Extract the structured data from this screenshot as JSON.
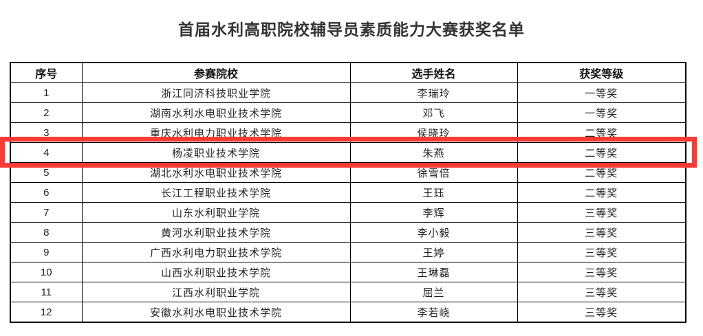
{
  "title": "首届水利高职院校辅导员素质能力大赛获奖名单",
  "table": {
    "columns": [
      "序号",
      "参赛院校",
      "选手姓名",
      "获奖等级"
    ],
    "rows": [
      {
        "no": "1",
        "school": "浙江同济科技职业学院",
        "name": "李瑞玲",
        "award": "一等奖"
      },
      {
        "no": "2",
        "school": "湖南水利水电职业技术学院",
        "name": "邓飞",
        "award": "一等奖"
      },
      {
        "no": "3",
        "school": "重庆水利电力职业技术学院",
        "name": "侯晓玲",
        "award": "二等奖"
      },
      {
        "no": "4",
        "school": "杨凌职业技术学院",
        "name": "朱燕",
        "award": "二等奖"
      },
      {
        "no": "5",
        "school": "湖北水利水电职业技术学院",
        "name": "徐雪倍",
        "award": "二等奖"
      },
      {
        "no": "6",
        "school": "长江工程职业技术学院",
        "name": "王珏",
        "award": "二等奖"
      },
      {
        "no": "7",
        "school": "山东水利职业学院",
        "name": "李辉",
        "award": "三等奖"
      },
      {
        "no": "8",
        "school": "黄河水利职业技术学院",
        "name": "李小毅",
        "award": "三等奖"
      },
      {
        "no": "9",
        "school": "广西水利电力职业技术学院",
        "name": "王婷",
        "award": "三等奖"
      },
      {
        "no": "10",
        "school": "山西水利职业技术学院",
        "name": "王琳磊",
        "award": "三等奖"
      },
      {
        "no": "11",
        "school": "江西水利职业学院",
        "name": "屈兰",
        "award": "三等奖"
      },
      {
        "no": "12",
        "school": "安徽水利水电职业技术学院",
        "name": "李若峣",
        "award": "三等奖"
      }
    ]
  },
  "highlight": {
    "highlighted_row_no": "4",
    "color": "#f93b35"
  }
}
